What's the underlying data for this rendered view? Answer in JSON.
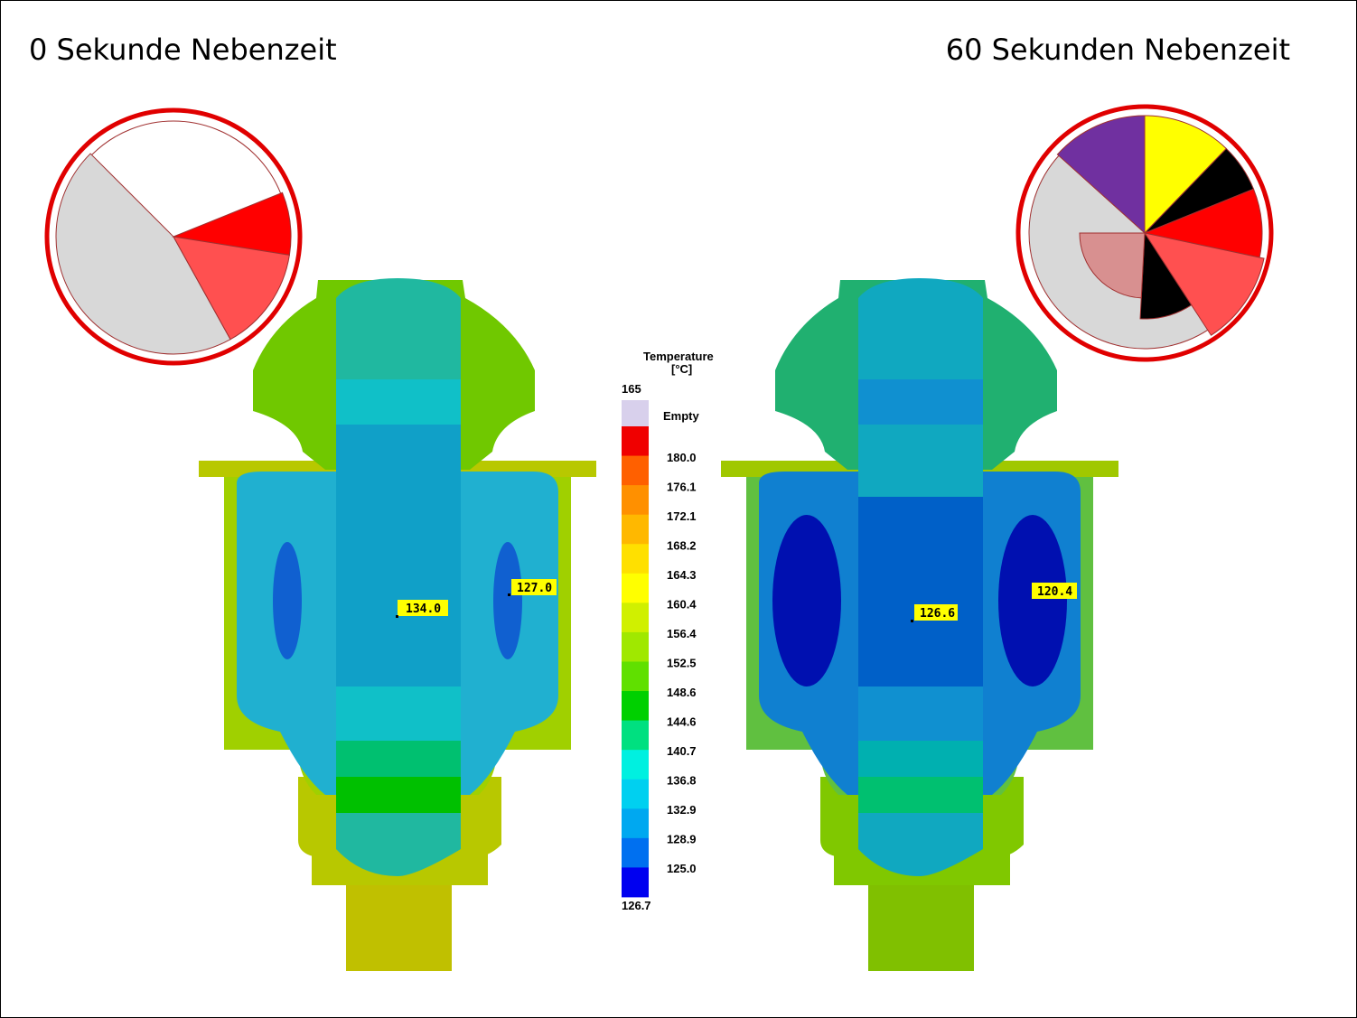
{
  "titles": {
    "left": "0 Sekunde Nebenzeit",
    "right": "60 Sekunden Nebenzeit"
  },
  "legend": {
    "title": "Temperature",
    "unit": "[°C]",
    "top": "165",
    "empty": "Empty",
    "bottom": "126.7",
    "labels": [
      "180.0",
      "176.1",
      "172.1",
      "168.2",
      "164.3",
      "160.4",
      "156.4",
      "152.5",
      "148.6",
      "144.6",
      "140.7",
      "136.8",
      "132.9",
      "128.9",
      "125.0"
    ]
  },
  "probes": {
    "left": [
      "134.0",
      "127.0"
    ],
    "right": [
      "126.6",
      "120.4"
    ]
  }
}
